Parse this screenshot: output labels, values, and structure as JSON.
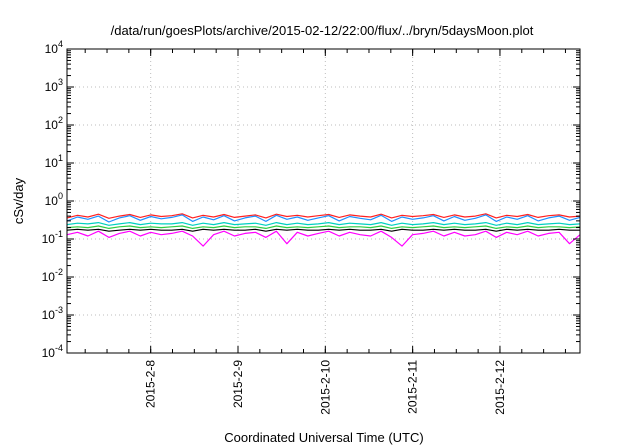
{
  "chart_data": {
    "type": "line",
    "title": "/data/run/goesPlots/archive/2015-02-12/22:00/flux/../bryn/5daysMoon.plot",
    "xlabel": "Coordinated Universal Time (UTC)",
    "ylabel": "cSv/day",
    "yscale": "log",
    "ylim": [
      0.0001,
      10000
    ],
    "yticks": [
      {
        "base": "10",
        "exp": "-4",
        "value": 0.0001
      },
      {
        "base": "10",
        "exp": "-3",
        "value": 0.001
      },
      {
        "base": "10",
        "exp": "-2",
        "value": 0.01
      },
      {
        "base": "10",
        "exp": "-1",
        "value": 0.1
      },
      {
        "base": "10",
        "exp": "0",
        "value": 1
      },
      {
        "base": "10",
        "exp": "1",
        "value": 10
      },
      {
        "base": "10",
        "exp": "2",
        "value": 100
      },
      {
        "base": "10",
        "exp": "3",
        "value": 1000
      },
      {
        "base": "10",
        "exp": "4",
        "value": 10000
      }
    ],
    "xlim": [
      "2015-02-07T01:00",
      "2015-02-12T22:00"
    ],
    "xticks": [
      {
        "label": "2015-2-8",
        "date": "2015-02-08T00:00"
      },
      {
        "label": "2015-2-9",
        "date": "2015-02-09T00:00"
      },
      {
        "label": "2015-2-10",
        "date": "2015-02-10T00:00"
      },
      {
        "label": "2015-2-11",
        "date": "2015-02-11T00:00"
      },
      {
        "label": "2015-2-12",
        "date": "2015-02-12T00:00"
      }
    ],
    "grid": true,
    "series": [
      {
        "color": "#ff2020",
        "values": [
          0.36,
          0.42,
          0.38,
          0.45,
          0.35,
          0.4,
          0.44,
          0.37,
          0.43,
          0.39,
          0.41,
          0.46,
          0.36,
          0.42,
          0.38,
          0.44,
          0.37,
          0.4,
          0.43,
          0.36,
          0.45,
          0.39,
          0.42,
          0.38,
          0.41,
          0.44,
          0.37,
          0.43,
          0.4,
          0.38,
          0.45,
          0.36,
          0.42,
          0.39,
          0.41,
          0.44,
          0.37,
          0.43,
          0.38,
          0.4,
          0.46,
          0.36,
          0.42,
          0.39,
          0.44,
          0.37,
          0.41,
          0.43,
          0.38,
          0.4
        ]
      },
      {
        "color": "#1e90ff",
        "values": [
          0.3,
          0.38,
          0.33,
          0.4,
          0.28,
          0.36,
          0.41,
          0.31,
          0.39,
          0.34,
          0.37,
          0.43,
          0.29,
          0.38,
          0.32,
          0.41,
          0.3,
          0.36,
          0.4,
          0.29,
          0.42,
          0.33,
          0.38,
          0.31,
          0.36,
          0.41,
          0.3,
          0.39,
          0.35,
          0.32,
          0.42,
          0.29,
          0.38,
          0.33,
          0.36,
          0.41,
          0.3,
          0.39,
          0.31,
          0.35,
          0.43,
          0.29,
          0.38,
          0.33,
          0.41,
          0.3,
          0.36,
          0.4,
          0.31,
          0.37
        ]
      },
      {
        "color": "#00d0c0",
        "values": [
          0.24,
          0.26,
          0.25,
          0.27,
          0.23,
          0.25,
          0.27,
          0.24,
          0.26,
          0.25,
          0.25,
          0.27,
          0.23,
          0.26,
          0.24,
          0.27,
          0.24,
          0.25,
          0.26,
          0.23,
          0.27,
          0.24,
          0.26,
          0.24,
          0.25,
          0.27,
          0.24,
          0.26,
          0.25,
          0.24,
          0.27,
          0.23,
          0.26,
          0.24,
          0.25,
          0.27,
          0.24,
          0.26,
          0.24,
          0.25,
          0.27,
          0.23,
          0.26,
          0.24,
          0.27,
          0.24,
          0.25,
          0.26,
          0.24,
          0.25
        ]
      },
      {
        "color": "#2ecc40",
        "values": [
          0.2,
          0.21,
          0.2,
          0.22,
          0.19,
          0.21,
          0.22,
          0.2,
          0.21,
          0.2,
          0.21,
          0.22,
          0.19,
          0.21,
          0.2,
          0.22,
          0.2,
          0.21,
          0.21,
          0.19,
          0.22,
          0.2,
          0.21,
          0.2,
          0.21,
          0.22,
          0.2,
          0.21,
          0.21,
          0.2,
          0.22,
          0.19,
          0.21,
          0.2,
          0.21,
          0.22,
          0.2,
          0.21,
          0.2,
          0.21,
          0.22,
          0.19,
          0.21,
          0.2,
          0.22,
          0.2,
          0.21,
          0.21,
          0.2,
          0.21
        ]
      },
      {
        "color": "#000000",
        "values": [
          0.17,
          0.18,
          0.17,
          0.18,
          0.16,
          0.17,
          0.18,
          0.17,
          0.18,
          0.17,
          0.17,
          0.18,
          0.16,
          0.18,
          0.17,
          0.18,
          0.17,
          0.17,
          0.18,
          0.16,
          0.18,
          0.17,
          0.18,
          0.17,
          0.17,
          0.18,
          0.17,
          0.18,
          0.17,
          0.17,
          0.18,
          0.16,
          0.18,
          0.17,
          0.17,
          0.18,
          0.17,
          0.18,
          0.17,
          0.17,
          0.18,
          0.16,
          0.18,
          0.17,
          0.18,
          0.17,
          0.17,
          0.18,
          0.17,
          0.17
        ]
      },
      {
        "color": "#ff00ff",
        "values": [
          0.13,
          0.15,
          0.12,
          0.16,
          0.11,
          0.14,
          0.16,
          0.12,
          0.15,
          0.13,
          0.14,
          0.16,
          0.12,
          0.065,
          0.13,
          0.16,
          0.12,
          0.14,
          0.15,
          0.11,
          0.16,
          0.075,
          0.15,
          0.12,
          0.14,
          0.16,
          0.12,
          0.15,
          0.13,
          0.12,
          0.16,
          0.11,
          0.065,
          0.13,
          0.14,
          0.16,
          0.12,
          0.15,
          0.12,
          0.13,
          0.16,
          0.11,
          0.15,
          0.13,
          0.16,
          0.12,
          0.14,
          0.15,
          0.075,
          0.13
        ]
      }
    ]
  }
}
